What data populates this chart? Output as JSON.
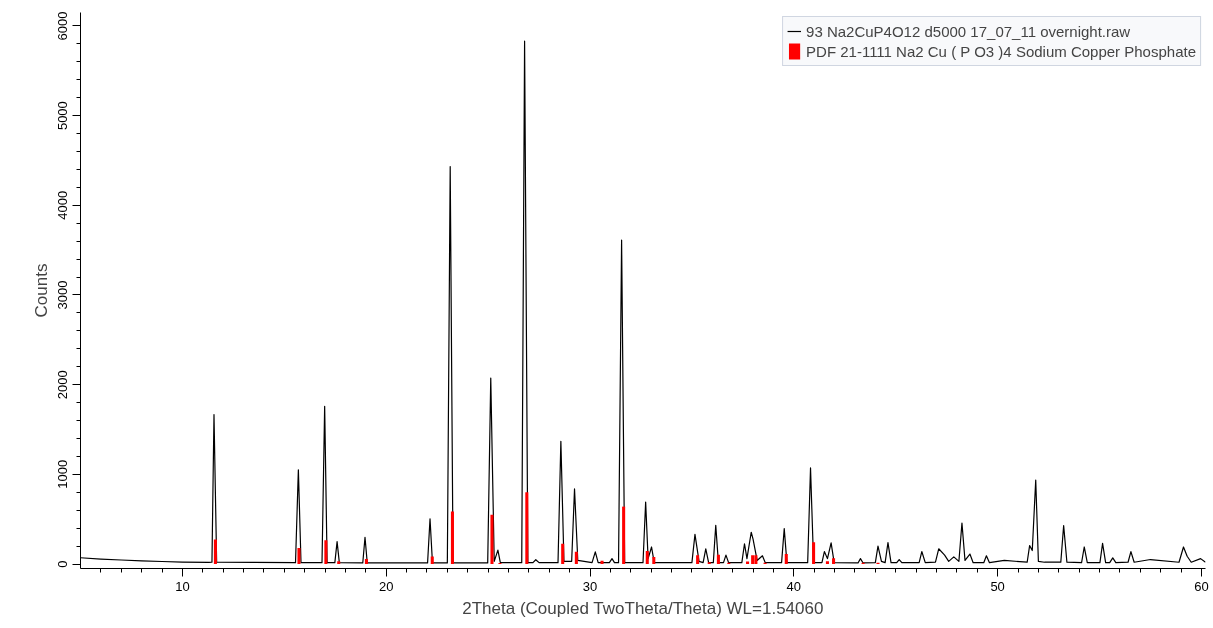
{
  "chart_data": {
    "type": "line",
    "xlabel": "2Theta (Coupled TwoTheta/Theta) WL=1.54060",
    "ylabel": "Counts",
    "xlim": [
      5,
      60.2
    ],
    "ylim": [
      -50,
      6150
    ],
    "xticks": [
      10,
      20,
      30,
      40,
      50,
      60
    ],
    "yticks": [
      0,
      1000,
      2000,
      3000,
      4000,
      5000,
      6000
    ],
    "grid": false,
    "legend": "top right",
    "series": [
      {
        "name": "93 Na2CuP4O12 d5000 17_07_11 overnight.raw",
        "color": "#000000",
        "x": [
          5,
          6,
          7,
          8,
          9,
          10,
          11.3,
          11.45,
          11.55,
          11.68,
          15.55,
          15.69,
          15.82,
          16.85,
          16.98,
          17.1,
          17.48,
          17.59,
          17.7,
          18.85,
          18.96,
          19.07,
          22.03,
          22.15,
          22.27,
          23.0,
          23.14,
          23.28,
          24.98,
          25.13,
          25.3,
          25.48,
          25.6,
          26.65,
          26.79,
          26.95,
          27.2,
          27.34,
          27.5,
          28.43,
          28.57,
          28.72,
          29.1,
          29.24,
          29.4,
          30.1,
          30.26,
          30.4,
          30.95,
          31.08,
          31.2,
          31.4,
          31.55,
          31.7,
          32.6,
          32.73,
          32.85,
          33.02,
          33.15,
          35.0,
          35.15,
          35.35,
          35.55,
          35.68,
          35.82,
          36.05,
          36.17,
          36.3,
          36.55,
          36.67,
          36.8,
          37.45,
          37.58,
          37.7,
          37.91,
          38.0,
          38.2,
          38.46,
          38.6,
          39.4,
          39.53,
          39.66,
          40.68,
          40.82,
          40.97,
          41.38,
          41.5,
          41.65,
          41.83,
          41.98,
          43.15,
          43.27,
          43.4,
          44.0,
          44.13,
          44.3,
          44.48,
          44.62,
          44.77,
          45.05,
          45.17,
          45.3,
          46.15,
          46.28,
          46.45,
          46.95,
          47.11,
          47.4,
          47.6,
          47.85,
          48.1,
          48.25,
          48.4,
          48.64,
          48.8,
          49.32,
          49.45,
          49.6,
          50.33,
          51.45,
          51.57,
          51.7,
          51.87,
          52.0,
          52.3,
          53.1,
          53.24,
          53.4,
          54.12,
          54.25,
          54.4,
          55.02,
          55.15,
          55.3,
          55.5,
          55.65,
          55.8,
          56.4,
          56.54,
          56.7,
          57.5,
          58.9,
          59.12,
          59.3,
          59.5,
          59.96,
          60.2
        ],
        "values": [
          70,
          55,
          45,
          35,
          28,
          22,
          18,
          20,
          1667,
          20,
          15,
          1051,
          15,
          15,
          1758,
          15,
          15,
          250,
          15,
          12,
          298,
          12,
          12,
          505,
          12,
          12,
          4433,
          12,
          12,
          2073,
          30,
          155,
          15,
          15,
          5830,
          15,
          15,
          48,
          15,
          15,
          1369,
          30,
          30,
          837,
          40,
          15,
          136,
          15,
          15,
          60,
          15,
          15,
          3612,
          15,
          15,
          690,
          60,
          190,
          15,
          15,
          330,
          30,
          15,
          170,
          15,
          15,
          432,
          15,
          15,
          99,
          15,
          15,
          226,
          60,
          354,
          277,
          40,
          92,
          15,
          15,
          396,
          15,
          15,
          1071,
          15,
          15,
          139,
          60,
          235,
          15,
          12,
          60,
          12,
          15,
          199,
          30,
          15,
          238,
          15,
          15,
          50,
          15,
          15,
          139,
          15,
          20,
          170,
          100,
          30,
          80,
          30,
          456,
          40,
          111,
          15,
          15,
          92,
          15,
          40,
          20,
          206,
          150,
          937,
          30,
          20,
          20,
          429,
          20,
          15,
          190,
          15,
          15,
          230,
          15,
          15,
          68,
          15,
          20,
          139,
          20,
          50,
          20,
          190,
          87,
          20,
          60,
          20
        ]
      },
      {
        "name": "PDF 21-1111 Na2 Cu ( P O3 )4 Sodium Copper Phosphate",
        "type": "bar",
        "color": "#ff0000",
        "x": [
          11.62,
          15.72,
          17.04,
          17.67,
          19.03,
          22.26,
          23.25,
          25.19,
          25.58,
          26.9,
          28.66,
          29.33,
          30.59,
          31.65,
          32.81,
          33.13,
          35.28,
          35.85,
          36.3,
          36.81,
          37.73,
          37.98,
          38.14,
          38.59,
          39.63,
          40.97,
          41.65,
          41.95,
          43.4,
          44.13
        ],
        "values": [
          274,
          179,
          265,
          32,
          56,
          83,
          587,
          550,
          10,
          800,
          226,
          136,
          36,
          640,
          145,
          77,
          99,
          20,
          103,
          15,
          27,
          99,
          99,
          15,
          111,
          242,
          32,
          63,
          15,
          15
        ]
      }
    ]
  }
}
